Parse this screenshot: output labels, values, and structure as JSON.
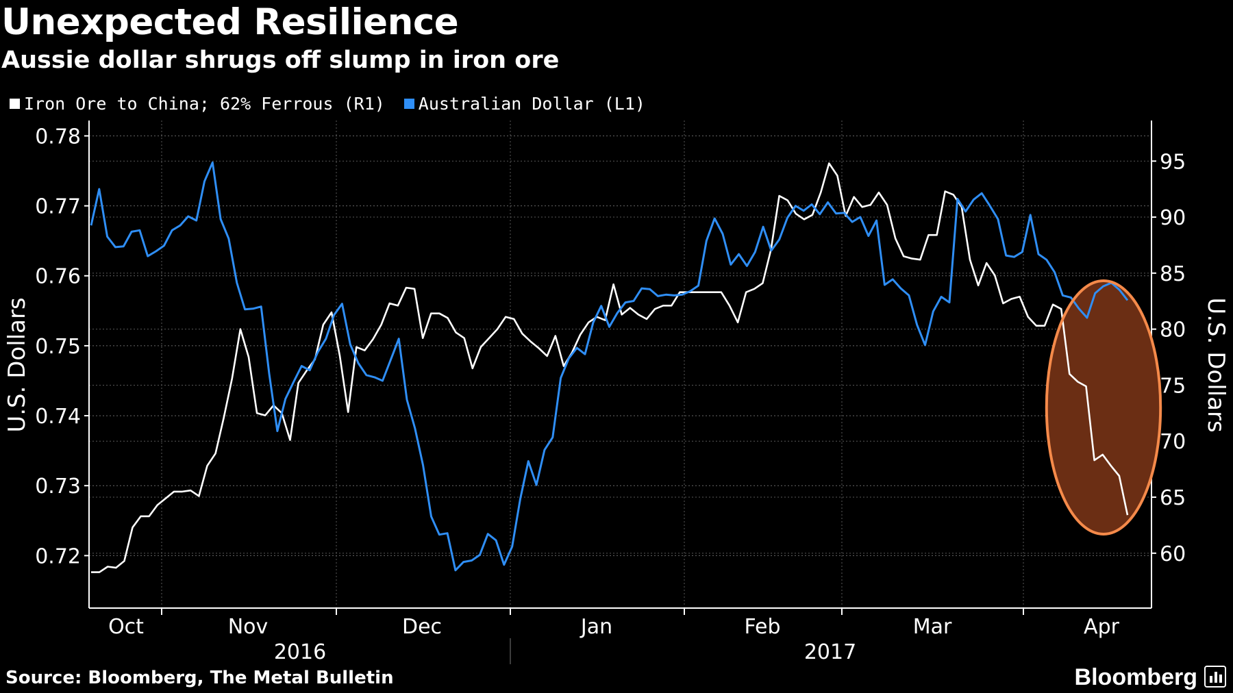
{
  "header": {
    "title": "Unexpected Resilience",
    "subtitle": "Aussie dollar shrugs off slump in iron ore"
  },
  "legend": [
    {
      "label": "Iron Ore to China; 62% Ferrous  (R1)",
      "color": "#ffffff"
    },
    {
      "label": "Australian Dollar (L1)",
      "color": "#2f8ef5"
    }
  ],
  "footer": {
    "source": "Source: Bloomberg, The Metal Bulletin",
    "brand": "Bloomberg"
  },
  "chart_data": {
    "type": "line",
    "title": "Unexpected Resilience",
    "subtitle": "Aussie dollar shrugs off slump in iron ore",
    "x_axis": {
      "months": [
        "Oct",
        "Nov",
        "Dec",
        "Jan",
        "Feb",
        "Mar",
        "Apr"
      ],
      "years": [
        "2016",
        "2017"
      ],
      "start": "2016-09-26",
      "end": "2017-04-12"
    },
    "y_left": {
      "label": "U.S. Dollars",
      "min": 0.7125,
      "max": 0.782,
      "ticks": [
        "0.78",
        "0.77",
        "0.76",
        "0.75",
        "0.74",
        "0.73",
        "0.72"
      ],
      "tick_values": [
        0.78,
        0.77,
        0.76,
        0.75,
        0.74,
        0.73,
        0.72
      ]
    },
    "y_right": {
      "label": "U.S. Dollars",
      "min": 55.1,
      "max": 98.5,
      "ticks": [
        "95",
        "90",
        "85",
        "80",
        "75",
        "70",
        "65",
        "60"
      ],
      "tick_values": [
        95,
        90,
        85,
        80,
        75,
        70,
        65,
        60
      ]
    },
    "grid": "dotted",
    "highlight": {
      "type": "ellipse",
      "around": "latest Apr values",
      "color": "#f58a4a",
      "fill": "#6b2e14"
    },
    "series": [
      {
        "name": "Iron Ore to China; 62% Ferrous  (R1)",
        "axis": "right",
        "color": "#ffffff",
        "values": [
          58.3,
          58.3,
          58.8,
          58.7,
          59.3,
          62.3,
          63.3,
          63.3,
          64.3,
          64.9,
          65.5,
          65.5,
          65.6,
          65.1,
          67.8,
          68.9,
          72.1,
          75.6,
          80.0,
          77.5,
          72.5,
          72.3,
          73.2,
          72.5,
          70.1,
          75.2,
          76.3,
          77.3,
          80.4,
          81.5,
          77.6,
          72.6,
          78.4,
          78.1,
          79.1,
          80.4,
          82.3,
          82.1,
          83.7,
          83.6,
          79.2,
          81.4,
          81.4,
          81.0,
          79.7,
          79.2,
          76.5,
          78.4,
          79.2,
          80.0,
          81.1,
          80.9,
          79.6,
          78.9,
          78.3,
          77.6,
          79.4,
          76.7,
          77.9,
          79.5,
          80.6,
          81.1,
          80.8,
          84.0,
          81.3,
          81.9,
          81.3,
          80.9,
          81.8,
          82.1,
          82.1,
          83.3,
          83.3,
          83.3,
          83.3,
          83.3,
          83.3,
          82.1,
          80.6,
          83.3,
          83.6,
          84.1,
          87.1,
          91.9,
          91.5,
          90.3,
          89.8,
          90.2,
          92.2,
          94.8,
          93.7,
          90.1,
          91.8,
          90.9,
          91.1,
          92.2,
          91.1,
          88.1,
          86.5,
          86.3,
          86.2,
          88.4,
          88.4,
          92.3,
          92.0,
          90.9,
          86.2,
          83.9,
          85.9,
          84.8,
          82.3,
          82.7,
          82.9,
          81.1,
          80.3,
          80.3,
          82.2,
          81.8,
          76.0,
          75.3,
          74.9,
          68.3,
          68.8,
          67.8,
          66.9,
          63.4
        ]
      },
      {
        "name": "Australian Dollar (L1)",
        "axis": "left",
        "color": "#2f8ef5",
        "values": [
          0.7672,
          0.7724,
          0.7656,
          0.7641,
          0.7642,
          0.7663,
          0.7665,
          0.7628,
          0.7635,
          0.7643,
          0.7665,
          0.7672,
          0.7685,
          0.7679,
          0.7735,
          0.7762,
          0.7681,
          0.7653,
          0.759,
          0.7552,
          0.7553,
          0.7556,
          0.746,
          0.7378,
          0.7424,
          0.7448,
          0.7471,
          0.7465,
          0.7491,
          0.751,
          0.7544,
          0.756,
          0.7502,
          0.7475,
          0.7458,
          0.7455,
          0.745,
          0.748,
          0.751,
          0.7423,
          0.7382,
          0.7329,
          0.7256,
          0.723,
          0.7232,
          0.7179,
          0.7191,
          0.7193,
          0.7201,
          0.7231,
          0.7222,
          0.7187,
          0.7213,
          0.7281,
          0.7335,
          0.7301,
          0.7351,
          0.7369,
          0.7454,
          0.7482,
          0.7497,
          0.7488,
          0.7533,
          0.7557,
          0.7527,
          0.7547,
          0.7562,
          0.7564,
          0.7582,
          0.7581,
          0.7571,
          0.7573,
          0.7572,
          0.7573,
          0.7578,
          0.7586,
          0.765,
          0.7682,
          0.766,
          0.7616,
          0.7631,
          0.7614,
          0.7634,
          0.767,
          0.7636,
          0.7652,
          0.7683,
          0.77,
          0.7693,
          0.7702,
          0.7688,
          0.7705,
          0.7689,
          0.769,
          0.7677,
          0.7684,
          0.7657,
          0.7679,
          0.7587,
          0.7595,
          0.7582,
          0.7572,
          0.753,
          0.7501,
          0.7549,
          0.757,
          0.7562,
          0.771,
          0.7692,
          0.7709,
          0.7718,
          0.77,
          0.7681,
          0.7629,
          0.7627,
          0.7634,
          0.7687,
          0.7631,
          0.7623,
          0.7605,
          0.7572,
          0.7569,
          0.7553,
          0.754,
          0.7575,
          0.7585,
          0.759,
          0.758,
          0.7565
        ]
      }
    ]
  }
}
